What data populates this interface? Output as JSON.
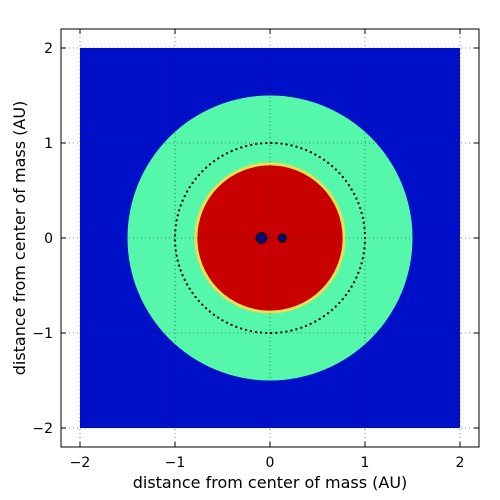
{
  "chart_data": {
    "type": "heatmap",
    "title": "",
    "xlabel": "distance from center of mass (AU)",
    "ylabel": "distance from center of mass (AU)",
    "xlim": [
      -2.2,
      2.2
    ],
    "ylim": [
      -2.2,
      2.2
    ],
    "x_ticks": [
      -2,
      -1,
      0,
      1,
      2
    ],
    "y_ticks": [
      -2,
      -1,
      0,
      1,
      2
    ],
    "x_tick_labels": [
      "−2",
      "−1",
      "0",
      "1",
      "2"
    ],
    "y_tick_labels": [
      "−2",
      "−1",
      "0",
      "1",
      "2"
    ],
    "grid": true,
    "extent": [
      -2,
      2,
      -2,
      2
    ],
    "regions": [
      {
        "radius": 1.5,
        "color": "#55f8aa"
      },
      {
        "radius": 0.78,
        "color": "#c80000"
      }
    ],
    "background_color": "#0010c8",
    "inner_boundary_color": "#e7e050",
    "orbit_circle": {
      "radius": 1.0,
      "style": "dotted",
      "color": "#000000"
    },
    "stars": [
      {
        "x": -0.09,
        "y": 0.0,
        "size": "large",
        "color": "#0a0a70"
      },
      {
        "x": 0.13,
        "y": 0.0,
        "size": "small",
        "color": "#0a0a70"
      }
    ]
  }
}
